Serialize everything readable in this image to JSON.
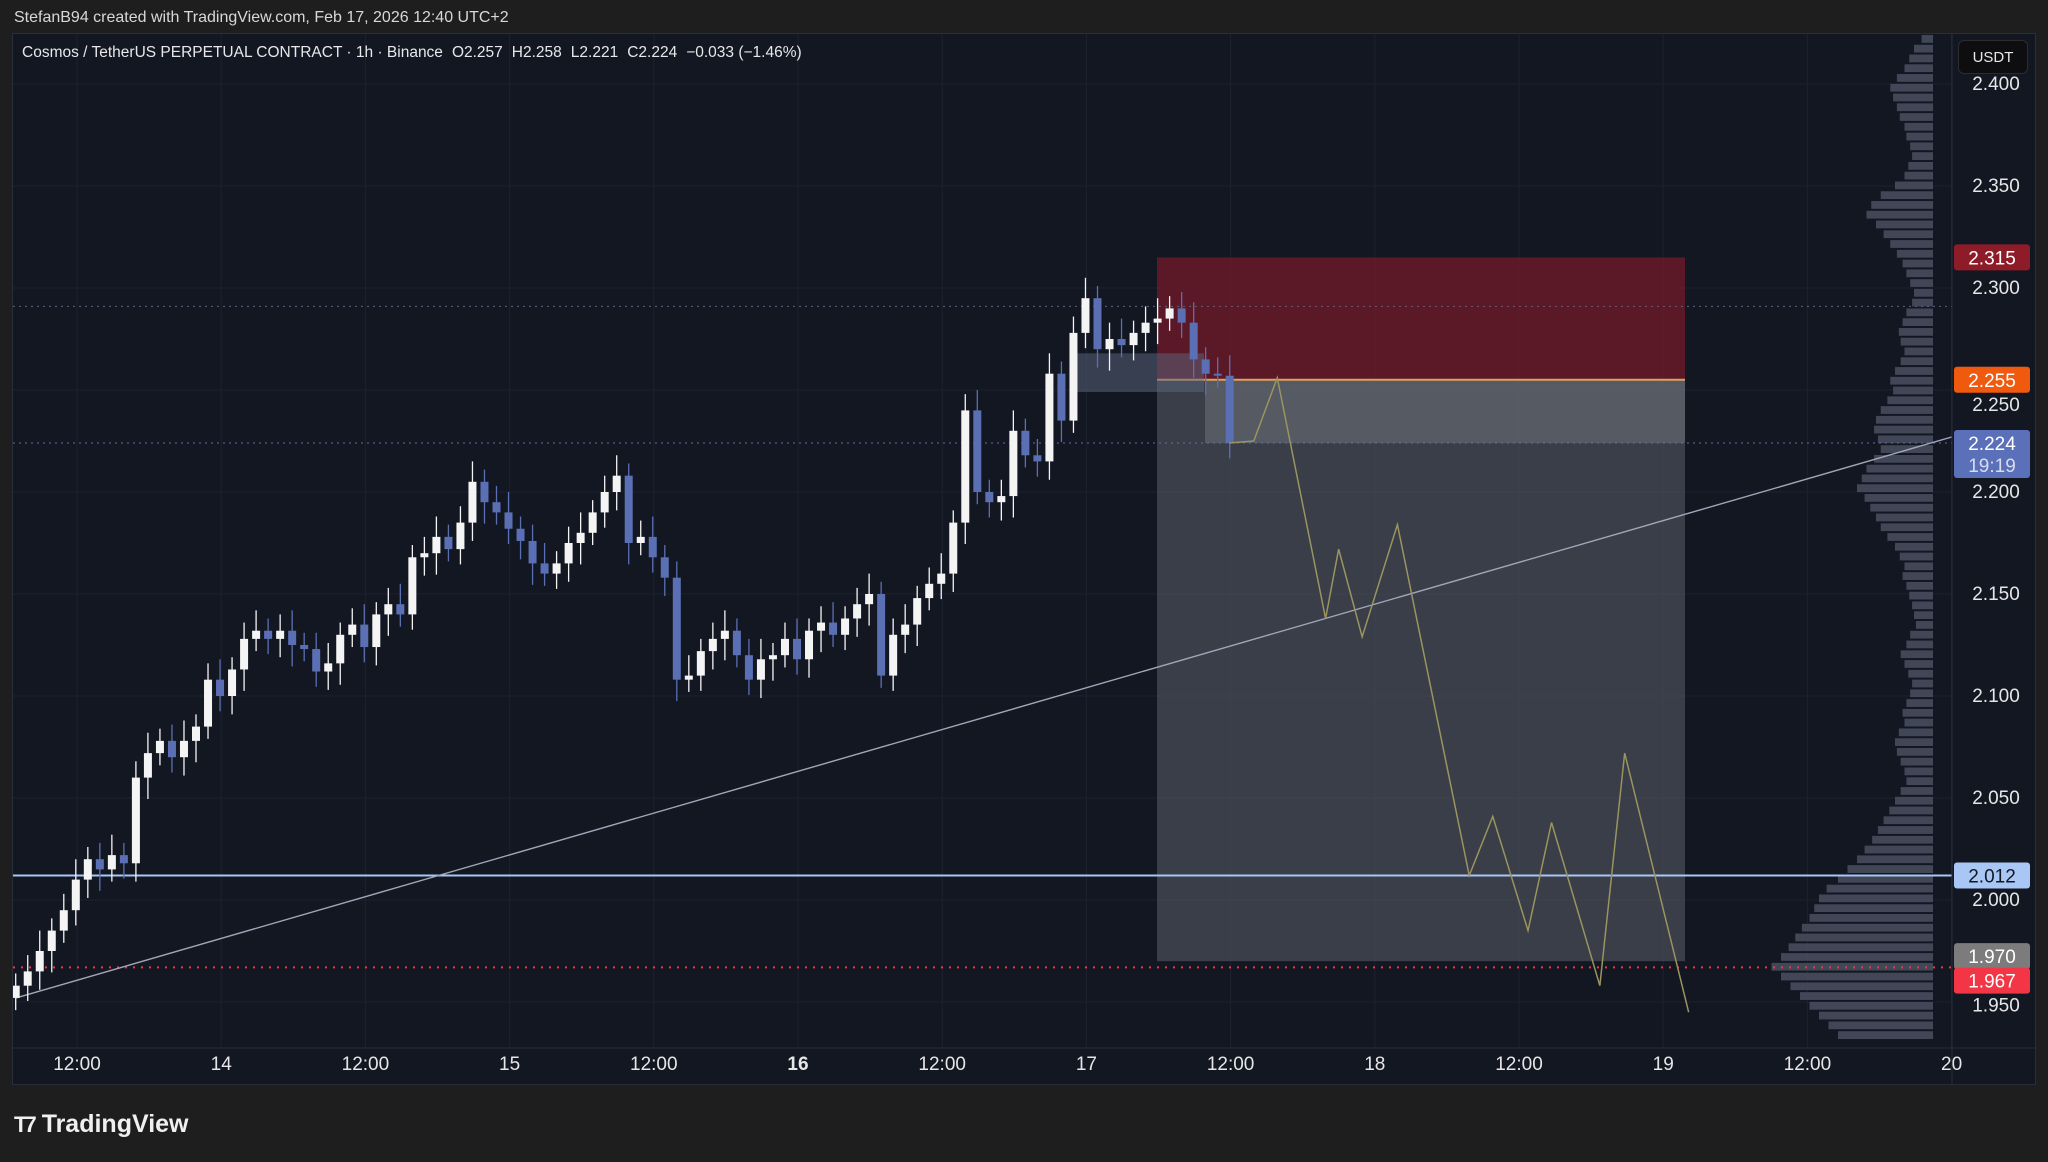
{
  "credit": "StefanB94 created with TradingView.com, Feb 17, 2026 12:40 UTC+2",
  "legend": {
    "symbol": "Cosmos / TetherUS PERPETUAL CONTRACT · 1h · Binance",
    "open": "O2.257",
    "high": "H2.258",
    "low": "L2.221",
    "close": "C2.224",
    "change": "−0.033 (−1.46%)"
  },
  "currency": "USDT",
  "logo_text": "TradingView",
  "chart_data": {
    "type": "candlestick",
    "interval": "1h",
    "ylim": [
      1.94,
      2.42
    ],
    "y_ticks": [
      "2.400",
      "2.350",
      "2.300",
      "2.250",
      "2.200",
      "2.150",
      "2.100",
      "2.050",
      "2.000",
      "1.950"
    ],
    "x_ticks": [
      {
        "label": "12:00",
        "bold": false
      },
      {
        "label": "14",
        "bold": false
      },
      {
        "label": "12:00",
        "bold": false
      },
      {
        "label": "15",
        "bold": false
      },
      {
        "label": "12:00",
        "bold": false
      },
      {
        "label": "16",
        "bold": true
      },
      {
        "label": "12:00",
        "bold": false
      },
      {
        "label": "17",
        "bold": false
      },
      {
        "label": "12:00",
        "bold": false
      },
      {
        "label": "18",
        "bold": false
      },
      {
        "label": "12:00",
        "bold": false
      },
      {
        "label": "19",
        "bold": false
      },
      {
        "label": "12:00",
        "bold": false
      },
      {
        "label": "20",
        "bold": false
      }
    ],
    "first_open": 1.952,
    "closes": [
      1.958,
      1.965,
      1.975,
      1.985,
      1.995,
      2.01,
      2.02,
      2.015,
      2.022,
      2.018,
      2.06,
      2.072,
      2.078,
      2.07,
      2.078,
      2.085,
      2.108,
      2.1,
      2.113,
      2.128,
      2.132,
      2.128,
      2.132,
      2.125,
      2.123,
      2.112,
      2.116,
      2.13,
      2.135,
      2.124,
      2.14,
      2.145,
      2.14,
      2.168,
      2.17,
      2.178,
      2.172,
      2.185,
      2.205,
      2.195,
      2.19,
      2.182,
      2.176,
      2.165,
      2.16,
      2.165,
      2.175,
      2.18,
      2.19,
      2.2,
      2.208,
      2.175,
      2.178,
      2.168,
      2.158,
      2.108,
      2.11,
      2.122,
      2.128,
      2.132,
      2.12,
      2.108,
      2.118,
      2.12,
      2.128,
      2.118,
      2.132,
      2.136,
      2.13,
      2.138,
      2.145,
      2.15,
      2.11,
      2.13,
      2.135,
      2.148,
      2.155,
      2.16,
      2.185,
      2.24,
      2.2,
      2.195,
      2.198,
      2.23,
      2.218,
      2.215,
      2.258,
      2.235,
      2.278,
      2.295,
      2.27,
      2.275,
      2.272,
      2.278,
      2.283,
      2.285,
      2.29,
      2.283,
      2.265,
      2.258,
      2.257,
      2.224
    ],
    "up_color": "#f4f4f4",
    "down_color": "#5b6fb5",
    "short_position": {
      "stop": 2.315,
      "entry": 2.255,
      "target": 1.97
    },
    "horizontal_levels": [
      {
        "price": 2.012,
        "label": "2.012",
        "color": "#a9c7f5",
        "style": "solid"
      },
      {
        "price": 1.967,
        "label": "1.967",
        "color": "#f23645",
        "style": "dotted"
      }
    ],
    "price_labels": {
      "stop": {
        "text": "2.315",
        "color": "#8e1c28"
      },
      "entry": {
        "text": "2.255",
        "color": "#f05a0f"
      },
      "current": {
        "text": "2.224",
        "countdown": "19:19",
        "color": "#5a70b8"
      },
      "target": {
        "text": "1.970",
        "color": "#7c7c7c"
      }
    },
    "trendline": {
      "from_price": 1.952,
      "to_price": 2.227
    },
    "projection_prices": [
      2.224,
      2.225,
      2.256,
      2.138,
      2.172,
      2.129,
      2.184,
      2.012,
      2.041,
      1.985,
      2.038,
      1.958,
      2.072,
      1.945
    ],
    "volume_profile": [
      12,
      20,
      25,
      30,
      38,
      45,
      42,
      38,
      35,
      30,
      28,
      24,
      22,
      26,
      30,
      40,
      55,
      65,
      70,
      60,
      52,
      45,
      38,
      32,
      28,
      24,
      20,
      22,
      28,
      32,
      36,
      34,
      30,
      34,
      40,
      45,
      42,
      48,
      55,
      60,
      62,
      58,
      55,
      62,
      70,
      75,
      80,
      72,
      66,
      60,
      55,
      48,
      40,
      35,
      30,
      32,
      28,
      25,
      22,
      20,
      18,
      24,
      28,
      34,
      30,
      26,
      22,
      24,
      28,
      32,
      30,
      36,
      40,
      38,
      34,
      30,
      28,
      34,
      40,
      46,
      52,
      58,
      64,
      72,
      80,
      90,
      100,
      112,
      120,
      125,
      130,
      138,
      145,
      152,
      160,
      170,
      160,
      150,
      140,
      130,
      120,
      110,
      100
    ]
  }
}
